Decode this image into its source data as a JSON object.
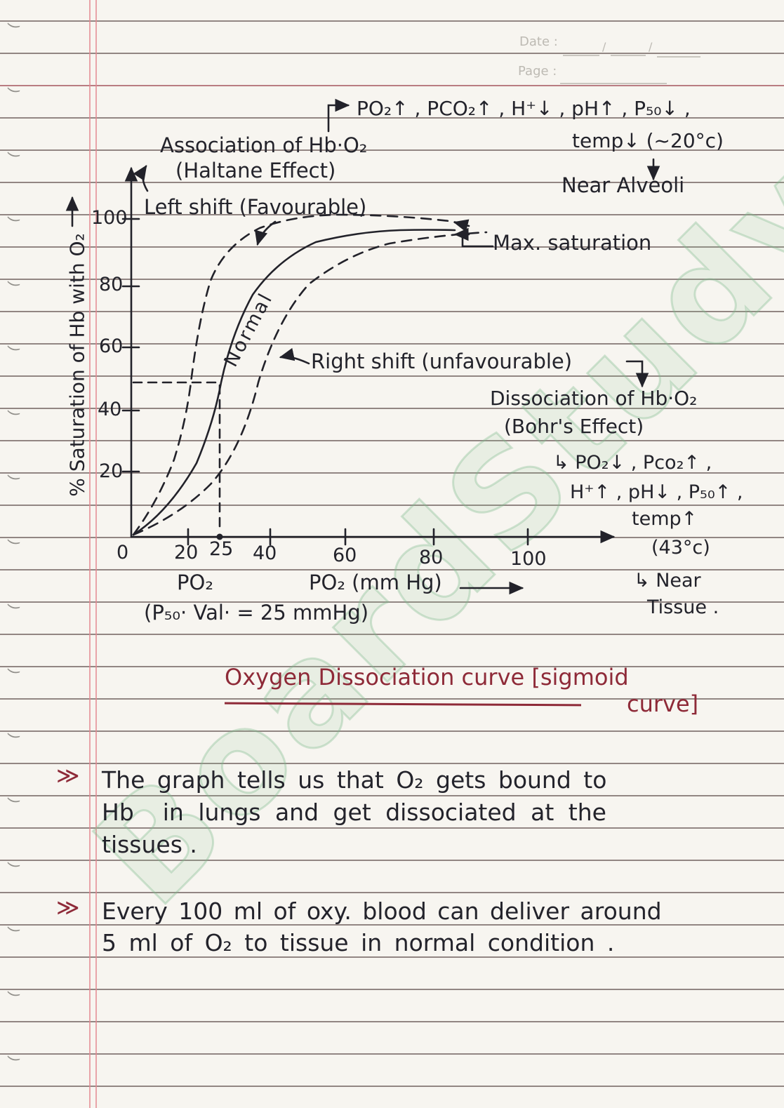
{
  "header": {
    "date_label": "Date :",
    "page_label": "Page :"
  },
  "watermark": {
    "text": "BoardStudy"
  },
  "colors": {
    "ink": "#23232b",
    "red_ink": "#8e2a38",
    "rule_line": "#544240",
    "margin_pink": "#e4888f",
    "watermark_green": "#80bc8c",
    "paper": "#f7f5f0"
  },
  "graph": {
    "y_axis_label": "% Saturation of Hb with O₂",
    "y_ticks": [
      "100",
      "80",
      "60",
      "40",
      "20"
    ],
    "x_ticks": [
      "0",
      "20",
      "25",
      "40",
      "60",
      "80",
      "100"
    ],
    "x_label_small": "PO₂",
    "x_label_main": "PO₂ (mm Hg)",
    "p50_note": "(P₅₀· Val· = 25 mmHg)",
    "annotations": {
      "association": "Association of Hb·O₂",
      "association_sub": "(Haltane Effect)",
      "left_shift": "Left shift (Favourable)",
      "alveoli_factors_1": "PO₂↑ , PCO₂↑ , H⁺↓ , pH↑ , P₅₀↓ ,",
      "alveoli_factors_2": "temp↓ (~20°c)",
      "near_alveoli": "Near Alveoli",
      "max_saturation": "Max. saturation",
      "normal": "Normal",
      "right_shift": "Right shift (unfavourable)",
      "dissociation": "Dissociation of Hb·O₂",
      "dissociation_sub": "(Bohr's Effect)",
      "tissue_factors_1": "↳ PO₂↓ , Pco₂↑ ,",
      "tissue_factors_2": "H⁺↑ , pH↓ , P₅₀↑ ,",
      "tissue_factors_3": "temp↑",
      "tissue_factors_4": "(43°c)",
      "near_tissue_1": "↳ Near",
      "near_tissue_2": "Tissue ."
    }
  },
  "chart_data": {
    "type": "line",
    "title": "Oxygen Dissociation curve [sigmoid curve]",
    "xlabel": "PO₂ (mm Hg)",
    "ylabel": "% Saturation of Hb with O₂",
    "xlim": [
      0,
      110
    ],
    "ylim": [
      0,
      100
    ],
    "x_ticks": [
      0,
      20,
      25,
      40,
      60,
      80,
      100
    ],
    "y_ticks": [
      20,
      40,
      60,
      80,
      100
    ],
    "grid": false,
    "p50_mmHg": 25,
    "series": [
      {
        "name": "Left shift (Favourable)",
        "style": "dashed",
        "x": [
          0,
          10,
          15,
          20,
          25,
          30,
          40,
          60,
          80
        ],
        "y": [
          0,
          18,
          35,
          55,
          72,
          85,
          95,
          98,
          99
        ]
      },
      {
        "name": "Normal",
        "style": "solid",
        "x": [
          0,
          10,
          20,
          25,
          30,
          40,
          50,
          60,
          80
        ],
        "y": [
          0,
          10,
          32,
          50,
          65,
          85,
          93,
          96,
          98
        ]
      },
      {
        "name": "Right shift (unfavourable)",
        "style": "dashed",
        "x": [
          0,
          10,
          20,
          25,
          30,
          40,
          50,
          60,
          80
        ],
        "y": [
          0,
          6,
          20,
          33,
          45,
          65,
          80,
          90,
          96
        ]
      }
    ],
    "annotations": [
      "Max. saturation at top plateau of all curves",
      "Dashed guides mark 50% saturation at PO₂ = 25 mmHg (P₅₀)"
    ]
  },
  "title": {
    "line1": "Oxygen Dissociation curve [sigmoid",
    "line2": "curve]"
  },
  "notes": [
    {
      "bullet": "≫",
      "lines": [
        "The graph tells us that O₂ gets bound to",
        "Hb  in lungs and get dissociated at the",
        "tissues ."
      ]
    },
    {
      "bullet": "≫",
      "lines": [
        "Every 100 ml of oxy. blood can deliver around",
        "5 ml of O₂ to tissue in normal condition ."
      ]
    }
  ]
}
